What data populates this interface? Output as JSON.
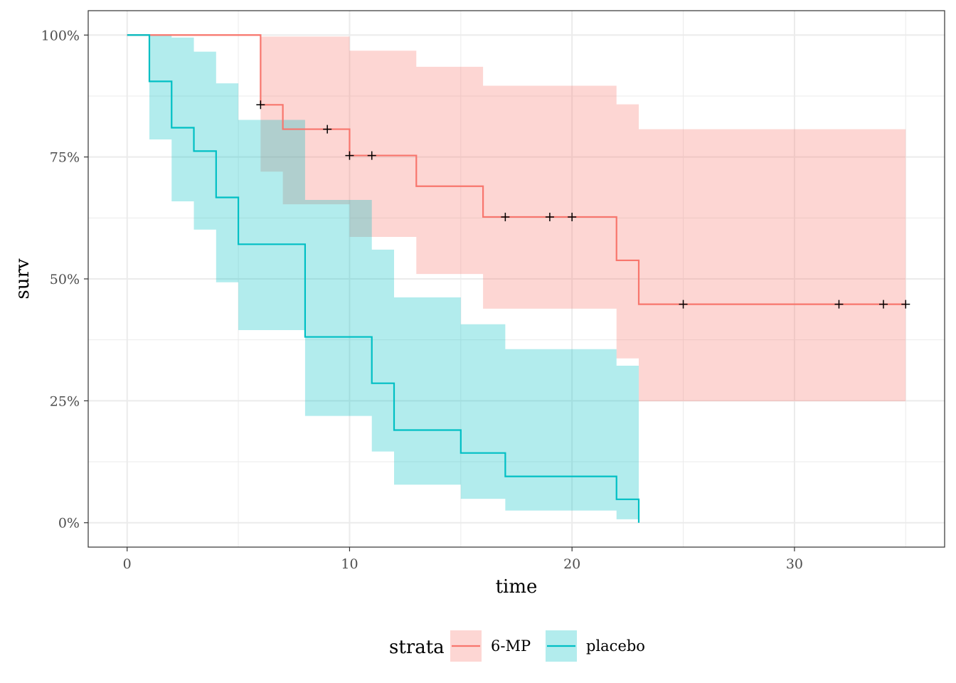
{
  "chart_data": {
    "type": "line",
    "subtype": "kaplan-meier-step",
    "title": "",
    "xlabel": "time",
    "ylabel": "surv",
    "xlim": [
      -1.75,
      36.75
    ],
    "ylim": [
      -0.05,
      1.05
    ],
    "x_ticks": [
      0,
      10,
      20,
      30
    ],
    "x_minor_ticks": [
      5,
      15,
      25,
      35
    ],
    "y_ticks": [
      0,
      0.25,
      0.5,
      0.75,
      1.0
    ],
    "y_tick_labels": [
      "0%",
      "25%",
      "50%",
      "75%",
      "100%"
    ],
    "y_minor_ticks": [
      0.125,
      0.375,
      0.625,
      0.875
    ],
    "grid": true,
    "legend": {
      "title": "strata",
      "position": "bottom",
      "entries": [
        "6-MP",
        "placebo"
      ]
    },
    "series": [
      {
        "name": "6-MP",
        "color": "#F8766D",
        "steps": [
          {
            "x": 0,
            "surv": 1.0,
            "lower": 1.0,
            "upper": 1.0
          },
          {
            "x": 6,
            "surv": 0.857,
            "lower": 0.72,
            "upper": 0.997
          },
          {
            "x": 7,
            "surv": 0.807,
            "lower": 0.653,
            "upper": 0.997
          },
          {
            "x": 10,
            "surv": 0.753,
            "lower": 0.586,
            "upper": 0.968
          },
          {
            "x": 13,
            "surv": 0.69,
            "lower": 0.51,
            "upper": 0.935
          },
          {
            "x": 16,
            "surv": 0.627,
            "lower": 0.439,
            "upper": 0.896
          },
          {
            "x": 22,
            "surv": 0.538,
            "lower": 0.337,
            "upper": 0.858
          },
          {
            "x": 23,
            "surv": 0.448,
            "lower": 0.249,
            "upper": 0.807
          }
        ],
        "end_x": 35,
        "censored": [
          {
            "x": 6,
            "surv": 0.857
          },
          {
            "x": 9,
            "surv": 0.807
          },
          {
            "x": 10,
            "surv": 0.753
          },
          {
            "x": 11,
            "surv": 0.753
          },
          {
            "x": 17,
            "surv": 0.627
          },
          {
            "x": 19,
            "surv": 0.627
          },
          {
            "x": 20,
            "surv": 0.627
          },
          {
            "x": 25,
            "surv": 0.448
          },
          {
            "x": 32,
            "surv": 0.448
          },
          {
            "x": 34,
            "surv": 0.448
          },
          {
            "x": 35,
            "surv": 0.448
          }
        ]
      },
      {
        "name": "placebo",
        "color": "#00BFC4",
        "steps": [
          {
            "x": 0,
            "surv": 1.0,
            "lower": 1.0,
            "upper": 1.0
          },
          {
            "x": 1,
            "surv": 0.905,
            "lower": 0.786,
            "upper": 1.0
          },
          {
            "x": 2,
            "surv": 0.81,
            "lower": 0.659,
            "upper": 0.995
          },
          {
            "x": 3,
            "surv": 0.762,
            "lower": 0.601,
            "upper": 0.966
          },
          {
            "x": 4,
            "surv": 0.667,
            "lower": 0.493,
            "upper": 0.901
          },
          {
            "x": 5,
            "surv": 0.571,
            "lower": 0.395,
            "upper": 0.826
          },
          {
            "x": 8,
            "surv": 0.381,
            "lower": 0.219,
            "upper": 0.662
          },
          {
            "x": 11,
            "surv": 0.286,
            "lower": 0.146,
            "upper": 0.56
          },
          {
            "x": 12,
            "surv": 0.19,
            "lower": 0.078,
            "upper": 0.462
          },
          {
            "x": 15,
            "surv": 0.143,
            "lower": 0.049,
            "upper": 0.407
          },
          {
            "x": 17,
            "surv": 0.095,
            "lower": 0.025,
            "upper": 0.356
          },
          {
            "x": 22,
            "surv": 0.048,
            "lower": 0.007,
            "upper": 0.322
          },
          {
            "x": 23,
            "surv": 0.0,
            "lower": 0.0,
            "upper": 0.0
          }
        ],
        "end_x": 23,
        "censored": []
      }
    ]
  }
}
